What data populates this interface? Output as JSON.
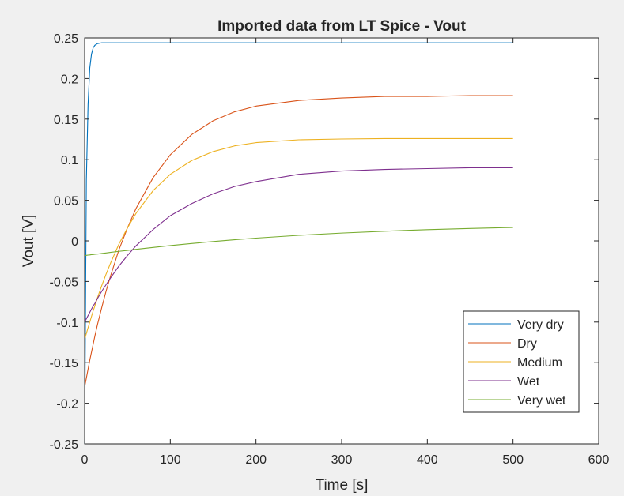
{
  "chart_data": {
    "type": "line",
    "title": "Imported data from LT Spice - Vout",
    "xlabel": "Time [s]",
    "ylabel": "Vout [V]",
    "xlim": [
      0,
      600
    ],
    "ylim": [
      -0.25,
      0.25
    ],
    "xticks": [
      0,
      100,
      200,
      300,
      400,
      500,
      600
    ],
    "xtick_labels": [
      "0",
      "100",
      "200",
      "300",
      "400",
      "500",
      "600"
    ],
    "yticks": [
      -0.25,
      -0.2,
      -0.15,
      -0.1,
      -0.05,
      0,
      0.05,
      0.1,
      0.15,
      0.2,
      0.25
    ],
    "ytick_labels": [
      "-0.25",
      "-0.2",
      "-0.15",
      "-0.1",
      "-0.05",
      "0",
      "0.05",
      "0.1",
      "0.15",
      "0.2",
      "0.25"
    ],
    "grid": false,
    "legend_position": "bottom-right",
    "x": [
      0,
      2,
      4,
      6,
      8,
      10,
      12,
      15,
      20,
      25,
      30,
      40,
      50,
      60,
      80,
      100,
      125,
      150,
      175,
      200,
      250,
      300,
      350,
      400,
      450,
      500
    ],
    "series": [
      {
        "name": "Very dry",
        "color": "#0072bd",
        "values": [
          -0.25,
          0.075,
          0.168,
          0.213,
          0.23,
          0.238,
          0.241,
          0.243,
          0.244,
          0.244,
          0.244,
          0.244,
          0.244,
          0.244,
          0.244,
          0.244,
          0.244,
          0.244,
          0.244,
          0.244,
          0.244,
          0.244,
          0.244,
          0.244,
          0.244,
          0.244
        ]
      },
      {
        "name": "Dry",
        "color": "#d95319",
        "values": [
          -0.18,
          -0.169,
          -0.158,
          -0.147,
          -0.137,
          -0.127,
          -0.117,
          -0.103,
          -0.082,
          -0.062,
          -0.044,
          -0.011,
          0.016,
          0.04,
          0.078,
          0.106,
          0.131,
          0.148,
          0.159,
          0.166,
          0.173,
          0.176,
          0.178,
          0.178,
          0.179,
          0.179
        ]
      },
      {
        "name": "Medium",
        "color": "#edb120",
        "values": [
          -0.122,
          -0.114,
          -0.107,
          -0.1,
          -0.093,
          -0.086,
          -0.08,
          -0.07,
          -0.055,
          -0.041,
          -0.028,
          -0.004,
          0.016,
          0.034,
          0.062,
          0.082,
          0.099,
          0.11,
          0.117,
          0.121,
          0.1245,
          0.1255,
          0.126,
          0.126,
          0.126,
          0.126
        ]
      },
      {
        "name": "Wet",
        "color": "#7e2f8e",
        "values": [
          -0.1,
          -0.096,
          -0.092,
          -0.088,
          -0.084,
          -0.08,
          -0.077,
          -0.071,
          -0.062,
          -0.054,
          -0.046,
          -0.031,
          -0.018,
          -0.006,
          0.014,
          0.031,
          0.046,
          0.058,
          0.067,
          0.073,
          0.082,
          0.086,
          0.088,
          0.089,
          0.09,
          0.09
        ]
      },
      {
        "name": "Very wet",
        "color": "#77ac30",
        "values": [
          -0.018,
          -0.0178,
          -0.0175,
          -0.0173,
          -0.017,
          -0.0168,
          -0.0165,
          -0.0162,
          -0.0155,
          -0.0149,
          -0.0142,
          -0.0129,
          -0.0117,
          -0.0104,
          -0.0081,
          -0.0058,
          -0.0032,
          -0.0008,
          0.0014,
          0.0034,
          0.0068,
          0.0096,
          0.0119,
          0.0138,
          0.0153,
          0.0165
        ]
      }
    ]
  }
}
